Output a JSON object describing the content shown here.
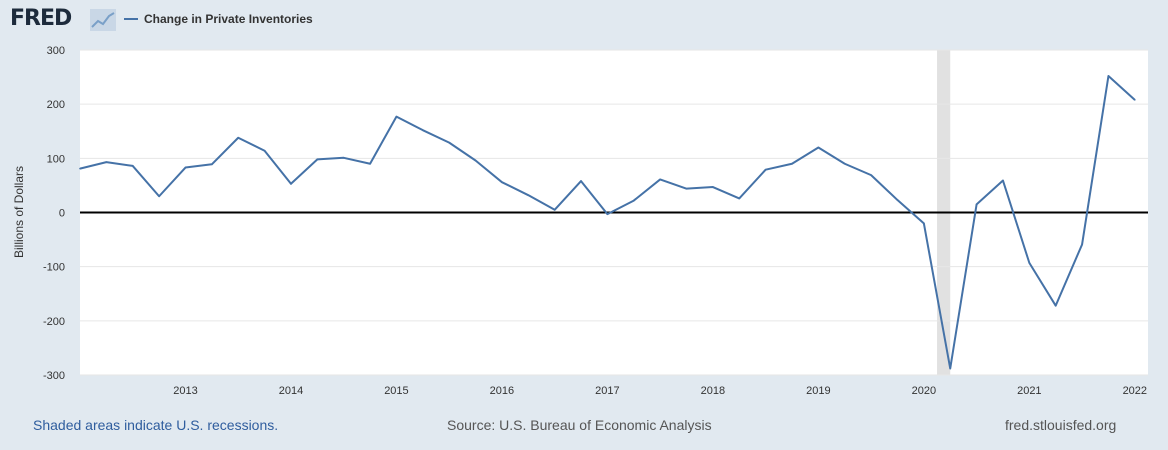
{
  "header": {
    "logo_text": "FRED",
    "legend_label": "Change in Private Inventories",
    "series_color": "#4572a7"
  },
  "footer": {
    "recession_note": "Shaded areas indicate U.S. recessions.",
    "source": "Source: U.S. Bureau of Economic Analysis",
    "site": "fred.stlouisfed.org"
  },
  "chart_data": {
    "type": "line",
    "ylabel": "Billions of Dollars",
    "ylim": [
      -300,
      300
    ],
    "yticks": [
      -300,
      -200,
      -100,
      0,
      100,
      200,
      300
    ],
    "xlim": [
      2012.0,
      2022.125
    ],
    "xticks": [
      2013,
      2014,
      2015,
      2016,
      2017,
      2018,
      2019,
      2020,
      2021,
      2022
    ],
    "recessions": [
      [
        2020.125,
        2020.25
      ]
    ],
    "series": [
      {
        "name": "Change in Private Inventories",
        "color": "#4572a7",
        "x": [
          2012.0,
          2012.25,
          2012.5,
          2012.75,
          2013.0,
          2013.25,
          2013.5,
          2013.75,
          2014.0,
          2014.25,
          2014.5,
          2014.75,
          2015.0,
          2015.25,
          2015.5,
          2015.75,
          2016.0,
          2016.25,
          2016.5,
          2016.75,
          2017.0,
          2017.25,
          2017.5,
          2017.75,
          2018.0,
          2018.25,
          2018.5,
          2018.75,
          2019.0,
          2019.25,
          2019.5,
          2019.75,
          2020.0,
          2020.25,
          2020.5,
          2020.75,
          2021.0,
          2021.25,
          2021.5,
          2021.75,
          2022.0
        ],
        "y": [
          81,
          93,
          86,
          30,
          83,
          89,
          138,
          114,
          53,
          98,
          101,
          90,
          177,
          152,
          129,
          96,
          56,
          32,
          5,
          58,
          -3,
          22,
          61,
          44,
          47,
          26,
          79,
          90,
          120,
          90,
          69,
          23,
          -20,
          -288,
          15,
          59,
          -93,
          -172,
          -59,
          252,
          208
        ]
      }
    ]
  }
}
